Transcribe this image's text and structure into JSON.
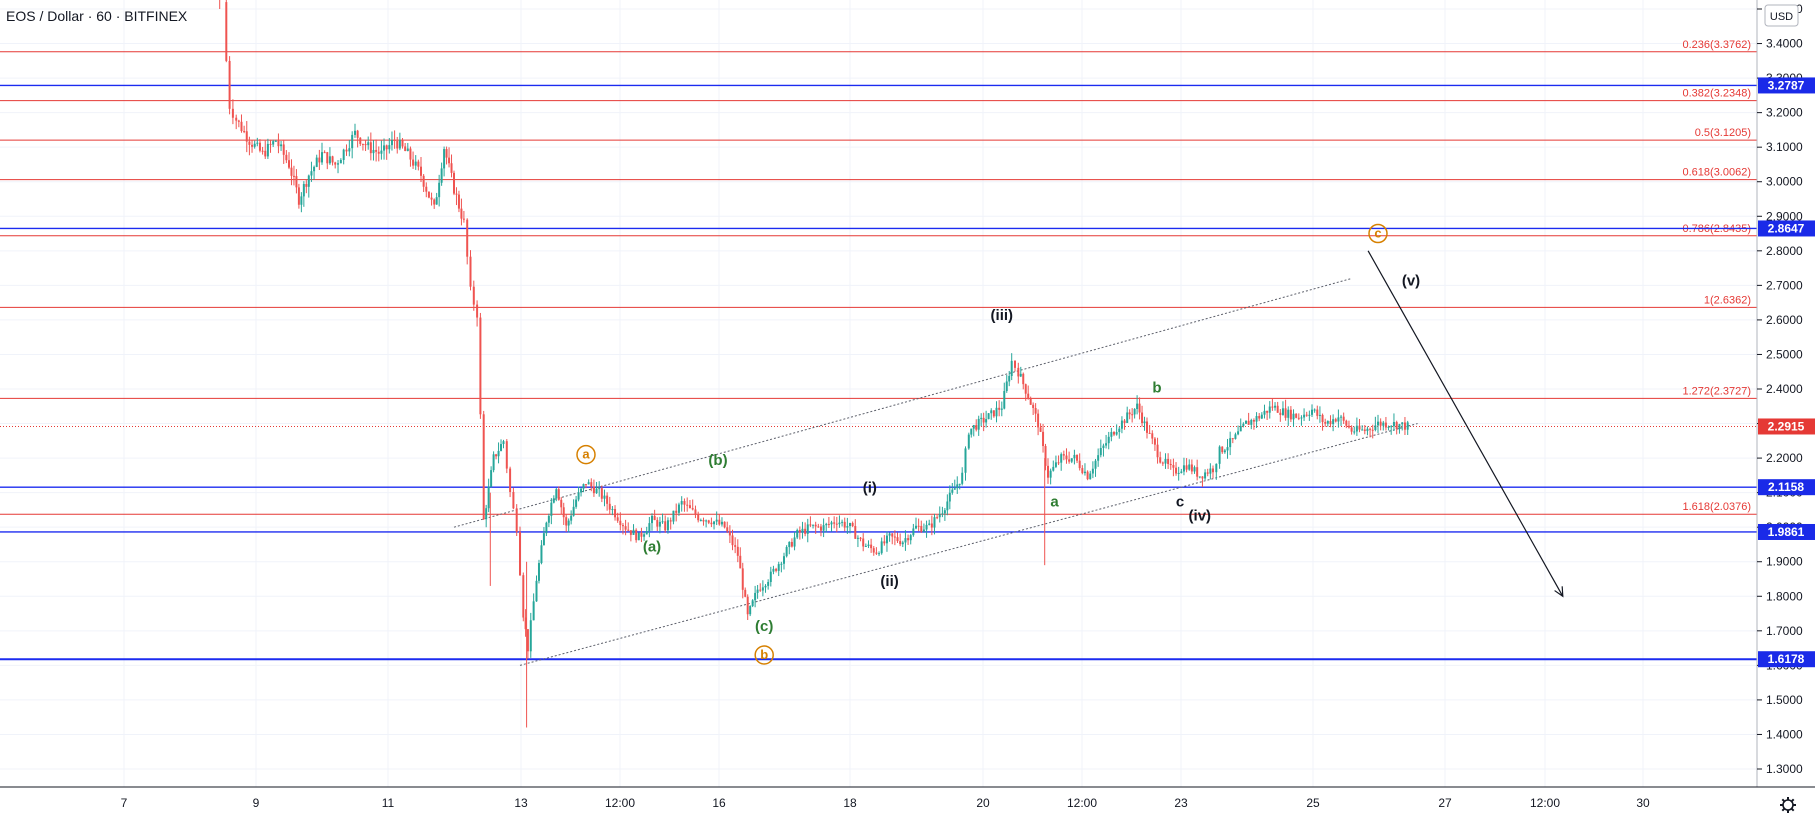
{
  "chart_title": "EOS / Dollar · 60 · BITFINEX",
  "currency_button": "USD",
  "settings_icon": "gear-icon",
  "colors": {
    "background": "#ffffff",
    "grid": "#f0f3fa",
    "fib": "#e53935",
    "support": "#1c2bf0",
    "badge": "#1a2ae8",
    "price_badge": "#e53935",
    "up_candle": "#26a69a",
    "down_candle": "#ef5350",
    "wave_black": "#131722",
    "wave_green": "#2e7d32",
    "wave_orange": "#d68000"
  },
  "chart_data": {
    "type": "candlestick",
    "title": "EOS / Dollar · 60 · BITFINEX",
    "ylim": [
      1.22,
      3.52
    ],
    "y_ticks": [
      "1.3000",
      "1.4000",
      "1.5000",
      "1.6000",
      "1.7000",
      "1.8000",
      "1.9000",
      "2.0000",
      "2.1000",
      "2.2000",
      "2.3000",
      "2.4000",
      "2.5000",
      "2.6000",
      "2.7000",
      "2.8000",
      "2.9000",
      "3.0000",
      "3.1000",
      "3.2000",
      "3.3000",
      "3.4000",
      "3.5000"
    ],
    "x_ticks": [
      "7",
      "9",
      "11",
      "13",
      "12:00",
      "16",
      "18",
      "20",
      "12:00",
      "23",
      "25",
      "27",
      "12:00",
      "30"
    ],
    "fib_levels": [
      {
        "label": "0.236(3.3762)",
        "value": 3.3762
      },
      {
        "label": "0.382(3.2348)",
        "value": 3.2348
      },
      {
        "label": "0.5(3.1205)",
        "value": 3.1205
      },
      {
        "label": "0.618(3.0062)",
        "value": 3.0062
      },
      {
        "label": "0.786(2.8435)",
        "value": 2.8435
      },
      {
        "label": "1(2.6362)",
        "value": 2.6362
      },
      {
        "label": "1.272(2.3727)",
        "value": 2.3727
      },
      {
        "label": "1.618(2.0376)",
        "value": 2.0376
      }
    ],
    "support_levels": [
      {
        "label": "3.2787",
        "value": 3.2787
      },
      {
        "label": "2.8647",
        "value": 2.8647
      },
      {
        "label": "2.1158",
        "value": 2.1158
      },
      {
        "label": "1.9861",
        "value": 1.9861
      },
      {
        "label": "1.6178",
        "value": 1.6178
      }
    ],
    "last_price": {
      "label": "2.2915",
      "value": 2.2915
    },
    "price_path": [
      [
        8.5,
        3.52
      ],
      [
        8.55,
        3.35
      ],
      [
        8.6,
        3.22
      ],
      [
        8.7,
        3.18
      ],
      [
        8.9,
        3.12
      ],
      [
        9.1,
        3.08
      ],
      [
        9.3,
        3.12
      ],
      [
        9.5,
        3.05
      ],
      [
        9.65,
        2.95
      ],
      [
        9.8,
        3.02
      ],
      [
        10.0,
        3.08
      ],
      [
        10.2,
        3.05
      ],
      [
        10.5,
        3.14
      ],
      [
        10.7,
        3.1
      ],
      [
        10.9,
        3.08
      ],
      [
        11.1,
        3.12
      ],
      [
        11.3,
        3.08
      ],
      [
        11.5,
        3.02
      ],
      [
        11.7,
        2.92
      ],
      [
        11.85,
        3.1
      ],
      [
        12.0,
        2.98
      ],
      [
        12.15,
        2.88
      ],
      [
        12.25,
        2.68
      ],
      [
        12.35,
        2.62
      ],
      [
        12.45,
        2.02
      ],
      [
        12.6,
        2.2
      ],
      [
        12.75,
        2.25
      ],
      [
        12.85,
        2.1
      ],
      [
        12.95,
        2.0
      ],
      [
        13.05,
        1.75
      ],
      [
        13.12,
        1.65
      ],
      [
        13.25,
        1.85
      ],
      [
        13.4,
        2.02
      ],
      [
        13.55,
        2.12
      ],
      [
        13.7,
        2.0
      ],
      [
        13.85,
        2.08
      ],
      [
        14.0,
        2.13
      ],
      [
        14.2,
        2.1
      ],
      [
        14.4,
        2.05
      ],
      [
        14.6,
        2.0
      ],
      [
        14.8,
        1.97
      ],
      [
        15.0,
        2.02
      ],
      [
        15.2,
        2.0
      ],
      [
        15.45,
        2.07
      ],
      [
        15.7,
        2.03
      ],
      [
        15.9,
        2.02
      ],
      [
        16.1,
        2.0
      ],
      [
        16.3,
        1.92
      ],
      [
        16.45,
        1.74
      ],
      [
        16.6,
        1.82
      ],
      [
        16.8,
        1.86
      ],
      [
        17.0,
        1.92
      ],
      [
        17.2,
        1.98
      ],
      [
        17.4,
        2.0
      ],
      [
        17.6,
        2.0
      ],
      [
        17.8,
        2.02
      ],
      [
        18.0,
        2.0
      ],
      [
        18.2,
        1.95
      ],
      [
        18.4,
        1.93
      ],
      [
        18.6,
        1.97
      ],
      [
        18.8,
        1.96
      ],
      [
        19.0,
        2.0
      ],
      [
        19.2,
        2.0
      ],
      [
        19.4,
        2.05
      ],
      [
        19.55,
        2.1
      ],
      [
        19.7,
        2.15
      ],
      [
        19.8,
        2.28
      ],
      [
        19.95,
        2.3
      ],
      [
        20.1,
        2.32
      ],
      [
        20.3,
        2.35
      ],
      [
        20.45,
        2.48
      ],
      [
        20.55,
        2.45
      ],
      [
        20.7,
        2.38
      ],
      [
        20.85,
        2.3
      ],
      [
        21.0,
        2.15
      ],
      [
        21.2,
        2.2
      ],
      [
        21.4,
        2.2
      ],
      [
        21.6,
        2.15
      ],
      [
        21.8,
        2.22
      ],
      [
        22.0,
        2.28
      ],
      [
        22.2,
        2.32
      ],
      [
        22.35,
        2.35
      ],
      [
        22.5,
        2.28
      ],
      [
        22.7,
        2.2
      ],
      [
        22.9,
        2.16
      ],
      [
        23.1,
        2.18
      ],
      [
        23.3,
        2.15
      ],
      [
        23.5,
        2.17
      ],
      [
        23.6,
        2.22
      ],
      [
        23.8,
        2.25
      ],
      [
        24.0,
        2.3
      ],
      [
        24.2,
        2.32
      ],
      [
        24.4,
        2.35
      ],
      [
        24.6,
        2.33
      ],
      [
        24.8,
        2.32
      ],
      [
        25.0,
        2.34
      ],
      [
        25.2,
        2.3
      ],
      [
        25.4,
        2.32
      ],
      [
        25.6,
        2.28
      ],
      [
        25.8,
        2.28
      ],
      [
        26.0,
        2.3
      ],
      [
        26.2,
        2.3
      ],
      [
        26.45,
        2.2915
      ]
    ],
    "channel": [
      {
        "from": [
          13.0,
          1.6
        ],
        "to": [
          26.6,
          2.3
        ]
      },
      {
        "from": [
          12.0,
          2.0
        ],
        "to": [
          25.6,
          2.72
        ]
      }
    ],
    "projection_arrow": {
      "from": [
        25.85,
        2.8
      ],
      "to": [
        28.8,
        1.8
      ]
    },
    "wave_labels": [
      {
        "text": "(iii)",
        "x": 20.3,
        "y": 2.6,
        "color": "black"
      },
      {
        "text": "(i)",
        "x": 18.3,
        "y": 2.1,
        "color": "black"
      },
      {
        "text": "(ii)",
        "x": 18.6,
        "y": 1.83,
        "color": "black"
      },
      {
        "text": "(iv)",
        "x": 23.3,
        "y": 2.02,
        "color": "black"
      },
      {
        "text": "(v)",
        "x": 26.5,
        "y": 2.7,
        "color": "black"
      },
      {
        "text": "(b)",
        "x": 16.0,
        "y": 2.18,
        "color": "green"
      },
      {
        "text": "(a)",
        "x": 15.0,
        "y": 1.93,
        "color": "green"
      },
      {
        "text": "(c)",
        "x": 16.7,
        "y": 1.7,
        "color": "green"
      },
      {
        "text": "a",
        "x": 21.1,
        "y": 2.06,
        "color": "green"
      },
      {
        "text": "b",
        "x": 22.65,
        "y": 2.39,
        "color": "green"
      },
      {
        "text": "c",
        "x": 23.0,
        "y": 2.06,
        "color": "black"
      }
    ],
    "circled_labels": [
      {
        "text": "a",
        "x": 14.0,
        "y": 2.21
      },
      {
        "text": "b",
        "x": 16.7,
        "y": 1.63
      },
      {
        "text": "c",
        "x": 26.0,
        "y": 2.85
      }
    ]
  }
}
